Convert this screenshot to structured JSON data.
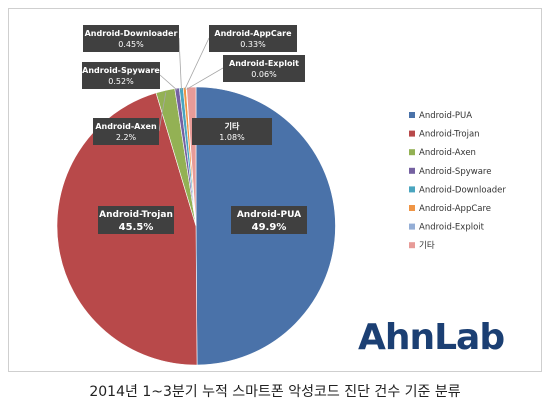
{
  "chart_data": {
    "type": "pie",
    "title": "",
    "categories": [
      "Android-PUA",
      "Android-Trojan",
      "Android-Axen",
      "Android-Spyware",
      "Android-Downloader",
      "Android-AppCare",
      "Android-Exploit",
      "기타"
    ],
    "values": [
      49.9,
      45.5,
      2.2,
      0.52,
      0.45,
      0.33,
      0.06,
      1.08
    ],
    "value_labels": [
      "49.9%",
      "45.5%",
      "2.2%",
      "0.52%",
      "0.45%",
      "0.33%",
      "0.06%",
      "1.08%"
    ],
    "colors": [
      "#4a72a9",
      "#b8494a",
      "#93b154",
      "#7561a1",
      "#4aa5bf",
      "#ef9545",
      "#94aed6",
      "#e79b98"
    ],
    "legend_position": "right"
  },
  "caption": "2014년 1~3분기 누적 스마트폰 악성코드 진단 건수 기준 분류",
  "logo_text": "AhnLab"
}
